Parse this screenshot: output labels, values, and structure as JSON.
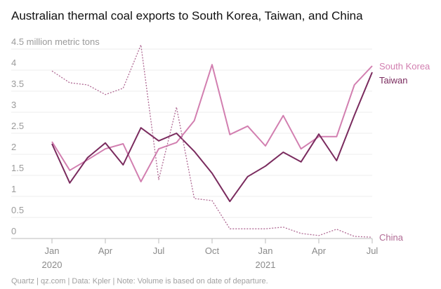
{
  "chart_data": {
    "type": "line",
    "title": "Australian thermal coal exports to South Korea, Taiwan, and China",
    "source": "Quartz | qz.com | Data: Kpler | Note: Volume is based on date of departure.",
    "categories": [
      "Jan",
      null,
      null,
      "Apr",
      null,
      null,
      "Jul",
      null,
      null,
      "Oct",
      null,
      null,
      "Jan",
      null,
      null,
      "Apr",
      null,
      null,
      "Jul"
    ],
    "years": [
      "2020",
      "2021"
    ],
    "ylim": [
      0,
      4.5
    ],
    "yticks": [
      0,
      0.5,
      1,
      1.5,
      2,
      2.5,
      3,
      3.5,
      4,
      {
        "value": 4.5,
        "label": "4.5 million metric tons"
      }
    ],
    "grid": true,
    "series": [
      {
        "name": "South Korea",
        "color": "#d27fb0",
        "dash": false,
        "values": [
          2.3,
          1.62,
          1.87,
          2.13,
          2.25,
          1.35,
          2.13,
          2.28,
          2.8,
          4.13,
          2.47,
          2.67,
          2.2,
          2.92,
          2.13,
          2.42,
          2.42,
          3.65,
          4.1
        ]
      },
      {
        "name": "Taiwan",
        "color": "#7a2b5e",
        "dash": false,
        "values": [
          2.25,
          1.32,
          1.92,
          2.27,
          1.75,
          2.63,
          2.32,
          2.5,
          2.07,
          1.55,
          0.88,
          1.47,
          1.72,
          2.05,
          1.82,
          2.48,
          1.85,
          2.93,
          3.95
        ]
      },
      {
        "name": "China",
        "color": "#b06a94",
        "dash": true,
        "values": [
          3.98,
          3.7,
          3.65,
          3.42,
          3.57,
          4.6,
          1.4,
          3.12,
          0.95,
          0.9,
          0.23,
          0.23,
          0.23,
          0.27,
          0.12,
          0.07,
          0.22,
          0.05,
          0.03
        ]
      }
    ]
  }
}
